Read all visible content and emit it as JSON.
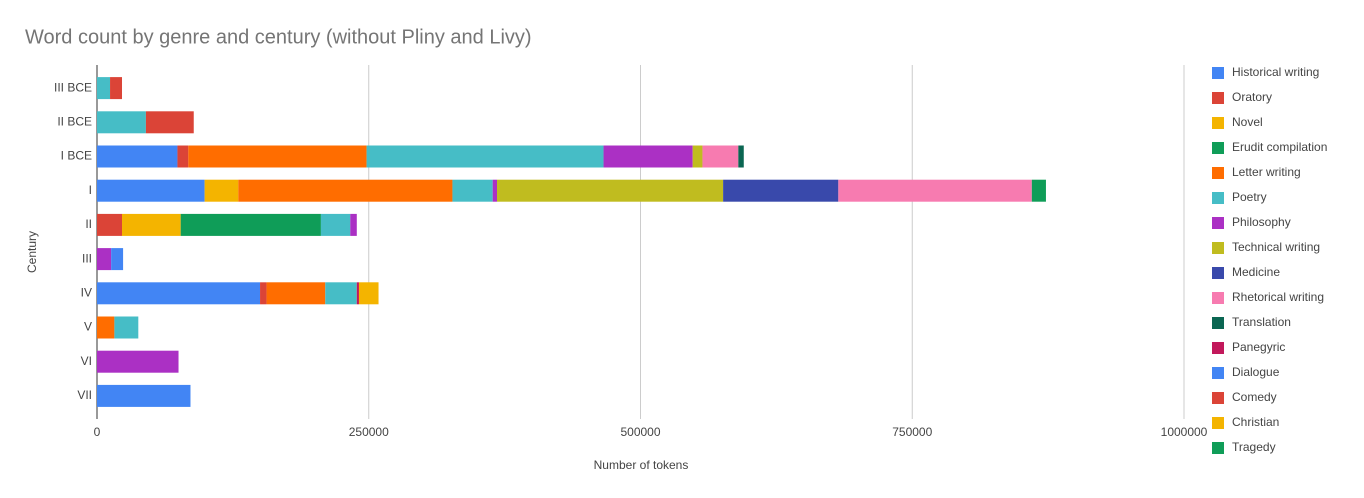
{
  "chart_data": {
    "type": "stacked-barh",
    "title": "Word count by genre and century (without Pliny and Livy)",
    "x_label": "Number of tokens",
    "y_label": "Century",
    "categories": [
      "III BCE",
      "II BCE",
      "I BCE",
      "I",
      "II",
      "III",
      "IV",
      "V",
      "VI",
      "VII"
    ],
    "xlim": [
      0,
      1000000
    ],
    "xticks": [
      0,
      250000,
      500000,
      750000,
      1000000
    ],
    "grid": true,
    "legend": "right",
    "series": [
      {
        "name": "Historical writing",
        "color": "#4285f4",
        "values": [
          null,
          null,
          74000,
          99000,
          null,
          null,
          150000,
          null,
          null,
          86000
        ]
      },
      {
        "name": "Oratory",
        "color": "#db4437",
        "values": [
          null,
          null,
          10000,
          null,
          23000,
          null,
          6000,
          null,
          null,
          null
        ]
      },
      {
        "name": "Novel",
        "color": "#f4b400",
        "values": [
          null,
          null,
          null,
          31000,
          54000,
          null,
          null,
          null,
          null,
          null
        ]
      },
      {
        "name": "Erudit compilation",
        "color": "#0f9d58",
        "values": [
          null,
          null,
          null,
          null,
          129000,
          null,
          null,
          null,
          null,
          null
        ]
      },
      {
        "name": "Letter writing",
        "color": "#ff6d00",
        "values": [
          null,
          null,
          164000,
          197000,
          null,
          null,
          54000,
          16000,
          null,
          null
        ]
      },
      {
        "name": "Poetry",
        "color": "#46bdc6",
        "values": [
          12000,
          45000,
          218000,
          37000,
          27000,
          null,
          29000,
          22000,
          null,
          null
        ]
      },
      {
        "name": "Philosophy",
        "color": "#ab30c4",
        "values": [
          null,
          null,
          82000,
          4000,
          6000,
          13000,
          null,
          null,
          75000,
          null
        ]
      },
      {
        "name": "Technical writing",
        "color": "#c0bc1f",
        "values": [
          null,
          null,
          9000,
          208000,
          null,
          null,
          null,
          null,
          null,
          null
        ]
      },
      {
        "name": "Medicine",
        "color": "#3949ab",
        "values": [
          null,
          null,
          null,
          106000,
          null,
          null,
          null,
          null,
          null,
          null
        ]
      },
      {
        "name": "Rhetorical writing",
        "color": "#f77bb0",
        "values": [
          null,
          null,
          33000,
          178000,
          null,
          null,
          null,
          null,
          null,
          null
        ]
      },
      {
        "name": "Translation",
        "color": "#0b6652",
        "values": [
          null,
          null,
          5000,
          null,
          null,
          null,
          null,
          null,
          null,
          null
        ]
      },
      {
        "name": "Panegyric",
        "color": "#c2185b",
        "values": [
          null,
          null,
          null,
          null,
          null,
          null,
          2000,
          null,
          null,
          null
        ]
      },
      {
        "name": "Dialogue",
        "color": "#4285f4",
        "values": [
          null,
          null,
          null,
          null,
          null,
          11000,
          null,
          null,
          null,
          null
        ]
      },
      {
        "name": "Comedy",
        "color": "#db4437",
        "values": [
          11000,
          44000,
          null,
          null,
          null,
          null,
          null,
          null,
          null,
          null
        ]
      },
      {
        "name": "Christian",
        "color": "#f4b400",
        "values": [
          null,
          null,
          null,
          null,
          null,
          null,
          18000,
          null,
          null,
          null
        ]
      },
      {
        "name": "Tragedy",
        "color": "#0f9d58",
        "values": [
          null,
          null,
          null,
          13000,
          null,
          null,
          null,
          null,
          null,
          null
        ]
      }
    ]
  }
}
